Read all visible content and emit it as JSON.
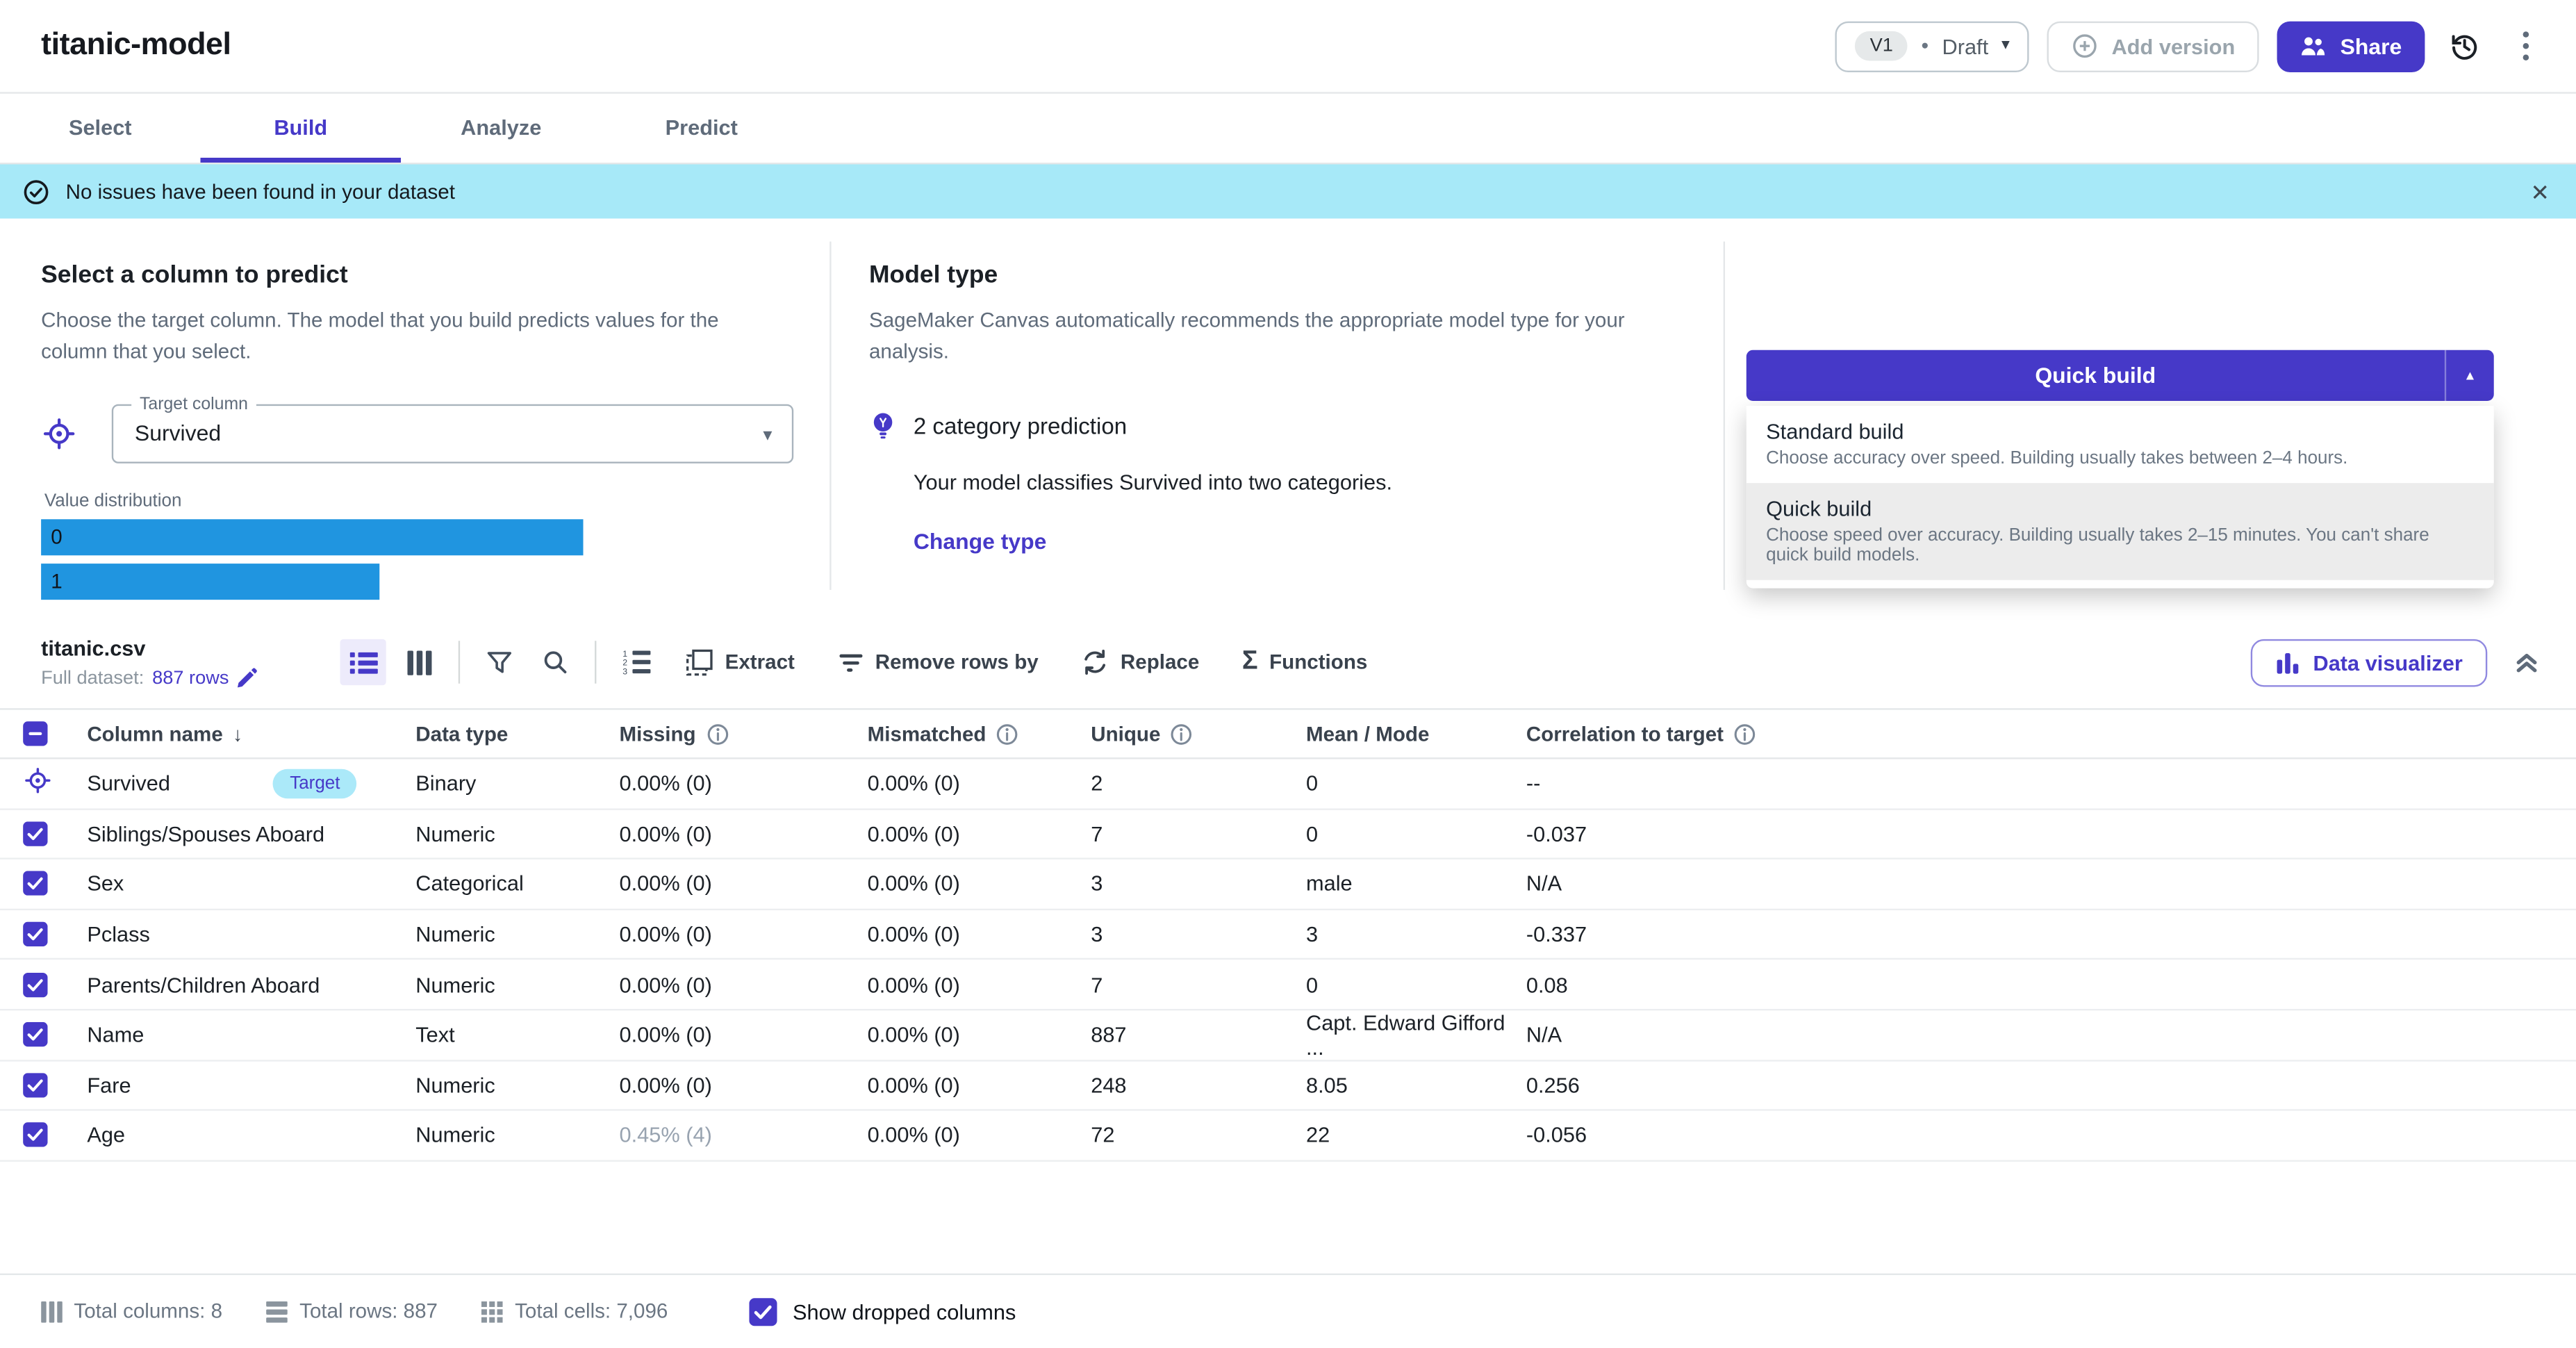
{
  "header": {
    "title": "titanic-model",
    "version_label": "V1",
    "status": "Draft",
    "add_version_label": "Add version",
    "share_label": "Share"
  },
  "tabs": [
    {
      "label": "Select",
      "active": false
    },
    {
      "label": "Build",
      "active": true
    },
    {
      "label": "Analyze",
      "active": false
    },
    {
      "label": "Predict",
      "active": false
    }
  ],
  "banner": {
    "message": "No issues have been found in your dataset"
  },
  "predict_panel": {
    "title": "Select a column to predict",
    "description": "Choose the target column. The model that you build predicts values for the column that you select.",
    "target_column_label": "Target column",
    "target_column_value": "Survived",
    "distribution_label": "Value distribution",
    "distribution": [
      {
        "label": "0",
        "width_pct": 72
      },
      {
        "label": "1",
        "width_pct": 45
      }
    ]
  },
  "model_type_panel": {
    "title": "Model type",
    "description": "SageMaker Canvas automatically recommends the appropriate model type for your analysis.",
    "recommendation": "2 category prediction",
    "detail": "Your model classifies Survived into two categories.",
    "change_link": "Change type"
  },
  "build_menu": {
    "button_label": "Quick build",
    "options": [
      {
        "label": "Standard build",
        "description": "Choose accuracy over speed. Building usually takes between 2–4 hours.",
        "selected": false
      },
      {
        "label": "Quick build",
        "description": "Choose speed over accuracy. Building usually takes 2–15 minutes. You can't share quick build models.",
        "selected": true
      }
    ]
  },
  "dataset_toolbar": {
    "filename": "titanic.csv",
    "full_dataset_label": "Full dataset:",
    "rows_link": "887 rows",
    "actions": [
      "Extract",
      "Remove rows by",
      "Replace",
      "Functions"
    ],
    "data_visualizer_label": "Data visualizer"
  },
  "table": {
    "headers": [
      {
        "label": "Column name",
        "info": false,
        "sorted": true
      },
      {
        "label": "Data type",
        "info": false,
        "sorted": false
      },
      {
        "label": "Missing",
        "info": true,
        "sorted": false
      },
      {
        "label": "Mismatched",
        "info": true,
        "sorted": false
      },
      {
        "label": "Unique",
        "info": true,
        "sorted": false
      },
      {
        "label": "Mean / Mode",
        "info": false,
        "sorted": false
      },
      {
        "label": "Correlation to target",
        "info": true,
        "sorted": false
      }
    ],
    "rows": [
      {
        "name": "Survived",
        "is_target": true,
        "badge": "Target",
        "type": "Binary",
        "missing": "0.00% (0)",
        "missing_muted": false,
        "mismatched": "0.00% (0)",
        "unique": "2",
        "mean_mode": "0",
        "correlation": "--"
      },
      {
        "name": "Siblings/Spouses Aboard",
        "is_target": false,
        "badge": "",
        "type": "Numeric",
        "missing": "0.00% (0)",
        "missing_muted": false,
        "mismatched": "0.00% (0)",
        "unique": "7",
        "mean_mode": "0",
        "correlation": "-0.037"
      },
      {
        "name": "Sex",
        "is_target": false,
        "badge": "",
        "type": "Categorical",
        "missing": "0.00% (0)",
        "missing_muted": false,
        "mismatched": "0.00% (0)",
        "unique": "3",
        "mean_mode": "male",
        "correlation": "N/A"
      },
      {
        "name": "Pclass",
        "is_target": false,
        "badge": "",
        "type": "Numeric",
        "missing": "0.00% (0)",
        "missing_muted": false,
        "mismatched": "0.00% (0)",
        "unique": "3",
        "mean_mode": "3",
        "correlation": "-0.337"
      },
      {
        "name": "Parents/Children Aboard",
        "is_target": false,
        "badge": "",
        "type": "Numeric",
        "missing": "0.00% (0)",
        "missing_muted": false,
        "mismatched": "0.00% (0)",
        "unique": "7",
        "mean_mode": "0",
        "correlation": "0.08"
      },
      {
        "name": "Name",
        "is_target": false,
        "badge": "",
        "type": "Text",
        "missing": "0.00% (0)",
        "missing_muted": false,
        "mismatched": "0.00% (0)",
        "unique": "887",
        "mean_mode": "Capt. Edward Gifford ...",
        "correlation": "N/A"
      },
      {
        "name": "Fare",
        "is_target": false,
        "badge": "",
        "type": "Numeric",
        "missing": "0.00% (0)",
        "missing_muted": false,
        "mismatched": "0.00% (0)",
        "unique": "248",
        "mean_mode": "8.05",
        "correlation": "0.256"
      },
      {
        "name": "Age",
        "is_target": false,
        "badge": "",
        "type": "Numeric",
        "missing": "0.45% (4)",
        "missing_muted": true,
        "mismatched": "0.00% (0)",
        "unique": "72",
        "mean_mode": "22",
        "correlation": "-0.056"
      }
    ]
  },
  "footer": {
    "total_columns": "Total columns: 8",
    "total_rows": "Total rows: 887",
    "total_cells": "Total cells: 7,096",
    "show_dropped_label": "Show dropped columns"
  },
  "icons": {
    "caret_down": "▾",
    "caret_up": "▲",
    "sort_down": "↓",
    "close": "✕",
    "sigma": "Σ",
    "status_dot": "●"
  },
  "colors": {
    "accent": "#4639c8",
    "banner_bg": "#a7e9f8",
    "badge_bg": "#abe9f9",
    "bar_blue": "#2095e0"
  }
}
